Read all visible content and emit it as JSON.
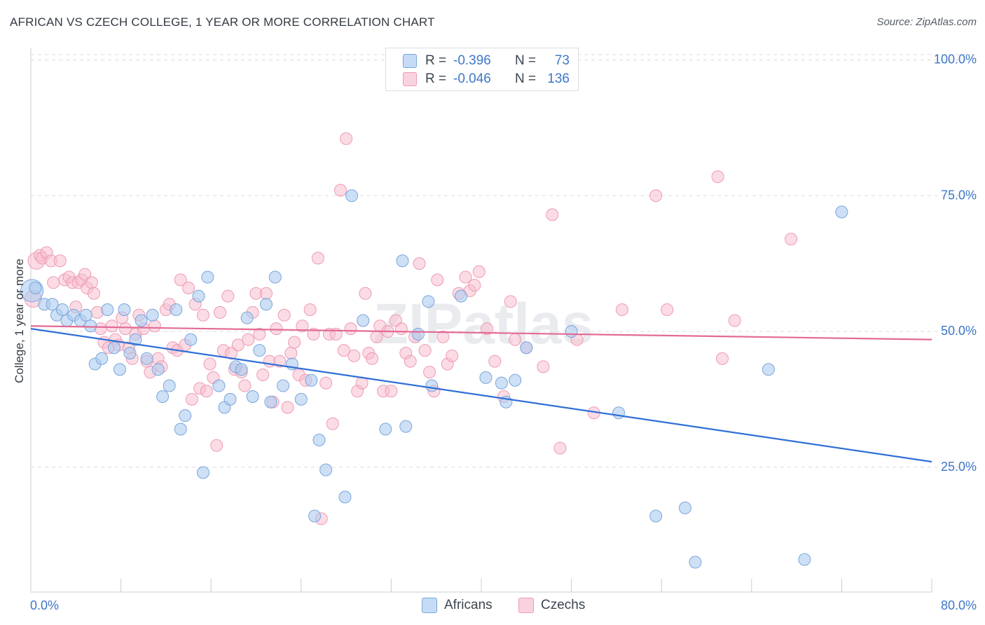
{
  "header": {
    "title": "AFRICAN VS CZECH COLLEGE, 1 YEAR OR MORE CORRELATION CHART",
    "source": "Source: ZipAtlas.com"
  },
  "legend_top": {
    "rows": [
      {
        "r_label": "R =",
        "r_value": "-0.396",
        "n_label": "N =",
        "n_value": "73"
      },
      {
        "r_label": "R =",
        "r_value": "-0.046",
        "n_label": "N =",
        "n_value": "136"
      }
    ]
  },
  "legend_bottom": {
    "africans": "Africans",
    "czechs": "Czechs"
  },
  "colors": {
    "africans_fill": "#aecbef",
    "africans_stroke": "#7aa6dc",
    "africans_line": "#2f6fd6",
    "czechs_fill": "#f7bfd0",
    "czechs_stroke": "#ee9ab4",
    "czechs_line": "#e36a95",
    "tick_label": "#3d77c9",
    "grid": "#d8dce2"
  },
  "chart_data": {
    "type": "scatter",
    "title": "AFRICAN VS CZECH COLLEGE, 1 YEAR OR MORE CORRELATION CHART",
    "xlabel": "",
    "ylabel": "College, 1 year or more",
    "xlim": [
      0,
      80
    ],
    "ylim": [
      2,
      102
    ],
    "x_tick_labels": [
      "0.0%",
      "80.0%"
    ],
    "y_ticks": [
      25,
      50,
      75,
      100
    ],
    "y_tick_labels": [
      "25.0%",
      "50.0%",
      "75.0%",
      "100.0%"
    ],
    "grid": true,
    "legend_position": "top-center",
    "watermark": "ZIPatlas",
    "series": [
      {
        "name": "Africans",
        "r": -0.396,
        "n": 73,
        "trend": {
          "x": [
            0,
            80
          ],
          "y": [
            50.5,
            26.0
          ]
        },
        "points": [
          [
            0.1,
            57.5
          ],
          [
            0.4,
            58.0
          ],
          [
            1.2,
            55.0
          ],
          [
            1.9,
            55.0
          ],
          [
            2.3,
            53.0
          ],
          [
            2.8,
            54.0
          ],
          [
            3.2,
            52.0
          ],
          [
            3.8,
            53.0
          ],
          [
            4.4,
            52.0
          ],
          [
            4.9,
            53.0
          ],
          [
            5.3,
            51.0
          ],
          [
            5.7,
            44.0
          ],
          [
            6.3,
            45.0
          ],
          [
            6.8,
            54.0
          ],
          [
            7.4,
            47.0
          ],
          [
            7.9,
            43.0
          ],
          [
            8.3,
            54.0
          ],
          [
            8.8,
            46.0
          ],
          [
            9.3,
            48.5
          ],
          [
            9.8,
            52.0
          ],
          [
            10.3,
            45.0
          ],
          [
            10.8,
            53.0
          ],
          [
            11.3,
            43.0
          ],
          [
            11.7,
            38.0
          ],
          [
            12.3,
            40.0
          ],
          [
            12.9,
            54.0
          ],
          [
            13.3,
            32.0
          ],
          [
            13.7,
            34.5
          ],
          [
            14.2,
            48.5
          ],
          [
            14.9,
            56.5
          ],
          [
            15.3,
            24.0
          ],
          [
            15.7,
            60.0
          ],
          [
            16.7,
            40.0
          ],
          [
            17.2,
            36.0
          ],
          [
            17.7,
            37.5
          ],
          [
            18.2,
            43.5
          ],
          [
            18.7,
            43.0
          ],
          [
            19.2,
            52.5
          ],
          [
            19.7,
            38.0
          ],
          [
            20.3,
            46.5
          ],
          [
            20.9,
            55.0
          ],
          [
            21.3,
            37.0
          ],
          [
            21.7,
            60.0
          ],
          [
            22.4,
            40.0
          ],
          [
            23.2,
            44.0
          ],
          [
            24.0,
            37.5
          ],
          [
            24.9,
            41.0
          ],
          [
            25.2,
            16.0
          ],
          [
            25.6,
            30.0
          ],
          [
            26.2,
            24.5
          ],
          [
            27.9,
            19.5
          ],
          [
            28.5,
            75.0
          ],
          [
            29.5,
            52.0
          ],
          [
            31.5,
            32.0
          ],
          [
            33.0,
            63.0
          ],
          [
            33.3,
            32.5
          ],
          [
            34.4,
            49.5
          ],
          [
            35.3,
            55.5
          ],
          [
            35.6,
            40.0
          ],
          [
            38.2,
            56.5
          ],
          [
            40.4,
            41.5
          ],
          [
            41.8,
            40.5
          ],
          [
            42.2,
            37.0
          ],
          [
            43.0,
            41.0
          ],
          [
            44.0,
            47.0
          ],
          [
            48.0,
            50.0
          ],
          [
            52.2,
            35.0
          ],
          [
            55.5,
            16.0
          ],
          [
            58.1,
            17.5
          ],
          [
            59.0,
            7.5
          ],
          [
            65.5,
            43.0
          ],
          [
            68.7,
            8.0
          ],
          [
            72.0,
            72.0
          ]
        ]
      },
      {
        "name": "Czechs",
        "r": -0.046,
        "n": 136,
        "trend": {
          "x": [
            0,
            80
          ],
          "y": [
            51.0,
            48.5
          ]
        },
        "points": [
          [
            0.2,
            56.0
          ],
          [
            0.5,
            63.0
          ],
          [
            0.8,
            64.0
          ],
          [
            1.0,
            63.5
          ],
          [
            1.4,
            64.5
          ],
          [
            1.8,
            63.0
          ],
          [
            2.0,
            59.0
          ],
          [
            2.6,
            63.0
          ],
          [
            3.0,
            59.5
          ],
          [
            3.4,
            60.0
          ],
          [
            3.7,
            59.0
          ],
          [
            4.0,
            54.5
          ],
          [
            4.2,
            59.0
          ],
          [
            4.5,
            59.5
          ],
          [
            4.8,
            60.5
          ],
          [
            5.0,
            58.0
          ],
          [
            5.4,
            59.0
          ],
          [
            5.6,
            57.0
          ],
          [
            5.9,
            53.5
          ],
          [
            6.2,
            50.5
          ],
          [
            6.5,
            48.0
          ],
          [
            6.9,
            47.0
          ],
          [
            7.2,
            51.0
          ],
          [
            7.5,
            48.5
          ],
          [
            7.8,
            47.5
          ],
          [
            8.1,
            52.5
          ],
          [
            8.4,
            50.5
          ],
          [
            8.7,
            47.0
          ],
          [
            9.0,
            45.0
          ],
          [
            9.3,
            49.5
          ],
          [
            9.6,
            53.0
          ],
          [
            10.0,
            50.5
          ],
          [
            10.3,
            44.5
          ],
          [
            10.6,
            42.5
          ],
          [
            11.0,
            51.0
          ],
          [
            11.3,
            45.0
          ],
          [
            11.6,
            43.5
          ],
          [
            12.0,
            54.0
          ],
          [
            12.3,
            55.0
          ],
          [
            12.6,
            47.0
          ],
          [
            13.0,
            46.5
          ],
          [
            13.3,
            59.5
          ],
          [
            13.7,
            47.5
          ],
          [
            14.0,
            58.0
          ],
          [
            14.3,
            37.5
          ],
          [
            14.6,
            55.0
          ],
          [
            15.0,
            39.5
          ],
          [
            15.3,
            53.0
          ],
          [
            15.6,
            39.0
          ],
          [
            15.9,
            44.0
          ],
          [
            16.2,
            41.5
          ],
          [
            16.5,
            29.0
          ],
          [
            16.8,
            53.5
          ],
          [
            17.1,
            46.5
          ],
          [
            17.5,
            56.5
          ],
          [
            17.8,
            46.0
          ],
          [
            18.1,
            43.0
          ],
          [
            18.4,
            47.5
          ],
          [
            18.7,
            42.5
          ],
          [
            19.0,
            40.0
          ],
          [
            19.3,
            48.5
          ],
          [
            19.7,
            53.5
          ],
          [
            20.0,
            57.0
          ],
          [
            20.3,
            49.5
          ],
          [
            20.6,
            42.0
          ],
          [
            20.9,
            57.0
          ],
          [
            21.2,
            44.5
          ],
          [
            21.5,
            37.0
          ],
          [
            21.8,
            50.5
          ],
          [
            22.1,
            44.5
          ],
          [
            22.5,
            53.0
          ],
          [
            22.8,
            36.0
          ],
          [
            23.1,
            46.0
          ],
          [
            23.4,
            48.0
          ],
          [
            23.8,
            42.0
          ],
          [
            24.1,
            51.0
          ],
          [
            24.4,
            41.0
          ],
          [
            24.8,
            54.0
          ],
          [
            25.1,
            49.5
          ],
          [
            25.5,
            63.5
          ],
          [
            25.8,
            15.5
          ],
          [
            26.2,
            40.5
          ],
          [
            26.5,
            49.5
          ],
          [
            26.8,
            33.0
          ],
          [
            27.1,
            49.5
          ],
          [
            27.5,
            76.0
          ],
          [
            27.8,
            46.5
          ],
          [
            28.0,
            85.5
          ],
          [
            28.4,
            50.5
          ],
          [
            28.7,
            45.5
          ],
          [
            29.0,
            39.0
          ],
          [
            29.4,
            40.5
          ],
          [
            29.7,
            57.0
          ],
          [
            30.0,
            46.0
          ],
          [
            30.3,
            45.0
          ],
          [
            30.7,
            49.0
          ],
          [
            31.0,
            51.0
          ],
          [
            31.3,
            39.0
          ],
          [
            31.7,
            50.0
          ],
          [
            32.0,
            39.0
          ],
          [
            32.4,
            52.0
          ],
          [
            32.9,
            50.5
          ],
          [
            33.3,
            46.0
          ],
          [
            33.7,
            44.5
          ],
          [
            34.1,
            49.0
          ],
          [
            34.5,
            62.5
          ],
          [
            35.0,
            46.5
          ],
          [
            35.4,
            42.5
          ],
          [
            35.8,
            39.0
          ],
          [
            36.1,
            59.5
          ],
          [
            36.6,
            49.0
          ],
          [
            37.0,
            44.0
          ],
          [
            37.4,
            45.5
          ],
          [
            38.0,
            57.0
          ],
          [
            38.6,
            60.0
          ],
          [
            39.0,
            57.5
          ],
          [
            39.4,
            58.5
          ],
          [
            39.8,
            61.0
          ],
          [
            40.5,
            50.5
          ],
          [
            41.2,
            44.5
          ],
          [
            42.0,
            38.0
          ],
          [
            42.6,
            55.5
          ],
          [
            43.0,
            48.5
          ],
          [
            44.0,
            47.0
          ],
          [
            45.5,
            43.5
          ],
          [
            46.3,
            71.5
          ],
          [
            47.0,
            28.5
          ],
          [
            48.5,
            48.5
          ],
          [
            50.0,
            35.0
          ],
          [
            52.5,
            54.0
          ],
          [
            55.5,
            75.0
          ],
          [
            56.5,
            54.0
          ],
          [
            61.0,
            78.5
          ],
          [
            61.4,
            45.0
          ],
          [
            62.5,
            52.0
          ],
          [
            67.5,
            67.0
          ]
        ]
      }
    ]
  }
}
